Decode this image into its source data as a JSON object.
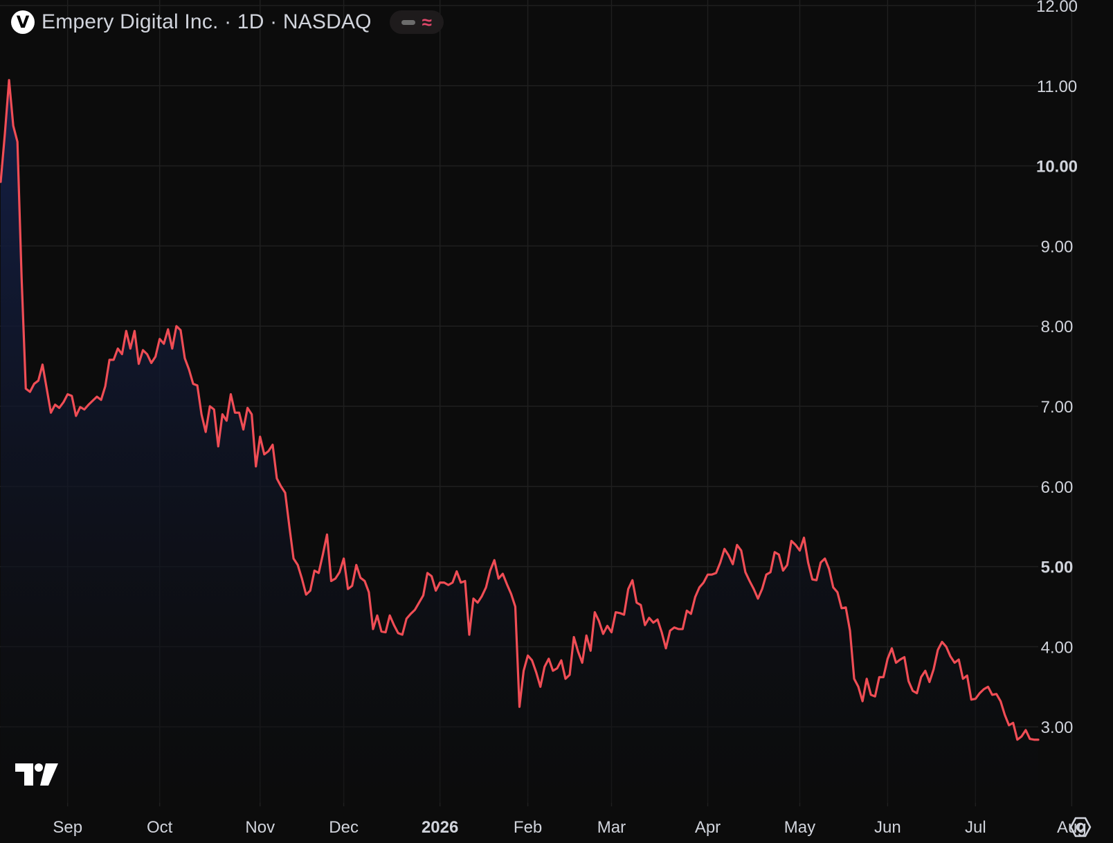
{
  "legend": {
    "badge": "V",
    "title": "Empery Digital Inc. · 1D · NASDAQ"
  },
  "icons": {
    "symbol": "ticker-badge-icon",
    "indicator": "indicator-toggle-icon",
    "brand": "tradingview-logo-icon",
    "settings": "settings-gear-icon"
  },
  "colors": {
    "background": "#0c0c0c",
    "line": "#f04d55",
    "area_top": "#121a3a",
    "grid": "#1f1f1f",
    "axis_text": "#d1d4dc"
  },
  "chart_data": {
    "type": "area",
    "series": [
      {
        "values": [
          9.8,
          10.4,
          11.07,
          10.5,
          10.3,
          8.6,
          7.22,
          7.18,
          7.28,
          7.32,
          7.52,
          7.22,
          6.92,
          7.02,
          6.98,
          7.05,
          7.15,
          7.13,
          6.88,
          6.99,
          6.96,
          7.02,
          7.07,
          7.12,
          7.08,
          7.25,
          7.58,
          7.58,
          7.72,
          7.65,
          7.94,
          7.72,
          7.94,
          7.53,
          7.7,
          7.65,
          7.54,
          7.62,
          7.84,
          7.78,
          7.96,
          7.72,
          8.0,
          7.95,
          7.6,
          7.46,
          7.28,
          7.26,
          6.9,
          6.68,
          7.0,
          6.96,
          6.5,
          6.9,
          6.82,
          7.15,
          6.92,
          6.92,
          6.71,
          6.98,
          6.9,
          6.25,
          6.62,
          6.4,
          6.44,
          6.52,
          6.1,
          6.0,
          5.92,
          5.5,
          5.1,
          5.02,
          4.85,
          4.65,
          4.7,
          4.95,
          4.92,
          5.15,
          5.4,
          4.82,
          4.85,
          4.93,
          5.1,
          4.72,
          4.76,
          5.02,
          4.86,
          4.82,
          4.68,
          4.22,
          4.39,
          4.19,
          4.18,
          4.39,
          4.27,
          4.17,
          4.15,
          4.35,
          4.41,
          4.46,
          4.55,
          4.64,
          4.92,
          4.88,
          4.7,
          4.8,
          4.8,
          4.77,
          4.8,
          4.94,
          4.8,
          4.82,
          4.15,
          4.6,
          4.55,
          4.63,
          4.74,
          4.95,
          5.08,
          4.85,
          4.91,
          4.78,
          4.66,
          4.5,
          3.25,
          3.7,
          3.89,
          3.83,
          3.68,
          3.5,
          3.75,
          3.85,
          3.7,
          3.73,
          3.83,
          3.6,
          3.65,
          4.12,
          3.94,
          3.8,
          4.14,
          3.95,
          4.43,
          4.32,
          4.16,
          4.26,
          4.18,
          4.43,
          4.42,
          4.4,
          4.72,
          4.83,
          4.55,
          4.52,
          4.27,
          4.36,
          4.3,
          4.34,
          4.18,
          3.98,
          4.2,
          4.24,
          4.22,
          4.22,
          4.45,
          4.41,
          4.62,
          4.74,
          4.8,
          4.9,
          4.9,
          4.92,
          5.05,
          5.22,
          5.14,
          5.03,
          5.27,
          5.2,
          4.93,
          4.82,
          4.72,
          4.6,
          4.72,
          4.9,
          4.93,
          5.18,
          5.15,
          4.95,
          5.02,
          5.32,
          5.27,
          5.2,
          5.36,
          5.05,
          4.84,
          4.83,
          5.05,
          5.1,
          4.97,
          4.74,
          4.68,
          4.48,
          4.49,
          4.2,
          3.6,
          3.5,
          3.32,
          3.6,
          3.4,
          3.38,
          3.62,
          3.62,
          3.85,
          3.98,
          3.8,
          3.84,
          3.87,
          3.57,
          3.45,
          3.42,
          3.62,
          3.7,
          3.56,
          3.72,
          3.96,
          4.06,
          4.0,
          3.88,
          3.8,
          3.84,
          3.6,
          3.64,
          3.34,
          3.35,
          3.42,
          3.47,
          3.5,
          3.4,
          3.41,
          3.32,
          3.15,
          3.02,
          3.05,
          2.84,
          2.88,
          2.96,
          2.85,
          2.84,
          2.84
        ]
      }
    ],
    "x_ticks": [
      {
        "label": "Sep",
        "index": 16
      },
      {
        "label": "Oct",
        "index": 38
      },
      {
        "label": "Nov",
        "index": 62
      },
      {
        "label": "Dec",
        "index": 82
      },
      {
        "label": "2026",
        "index": 105
      },
      {
        "label": "Feb",
        "index": 126
      },
      {
        "label": "Mar",
        "index": 146
      },
      {
        "label": "Apr",
        "index": 169
      },
      {
        "label": "May",
        "index": 191
      },
      {
        "label": "Jun",
        "index": 212
      },
      {
        "label": "Jul",
        "index": 233
      },
      {
        "label": "Aug",
        "index": 256
      }
    ],
    "y_ticks": [
      "12.00",
      "11.00",
      "10.00",
      "9.00",
      "8.00",
      "7.00",
      "6.00",
      "5.00",
      "4.00",
      "3.00"
    ],
    "y_bold_ticks": [
      "10.00",
      "5.00"
    ],
    "x_bold_ticks": [
      "2026"
    ],
    "ylim": [
      2.0,
      12.0
    ],
    "y_axis_position": "right",
    "grid": true
  }
}
